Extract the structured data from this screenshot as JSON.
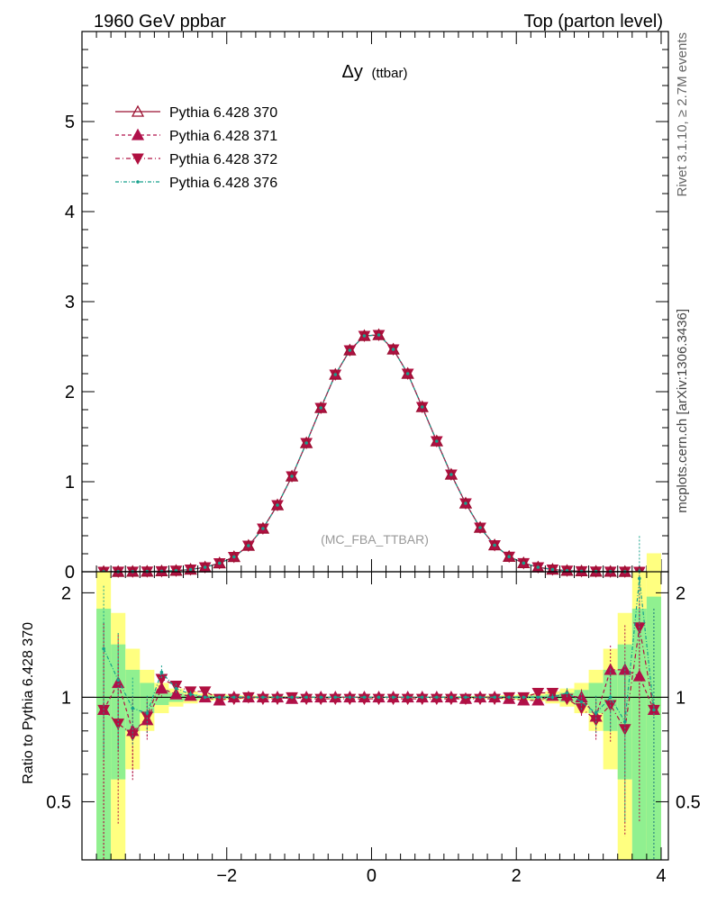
{
  "header": {
    "left": "1960 GeV ppbar",
    "right": "Top (parton level)"
  },
  "side_labels": {
    "rivet": "Rivet 3.1.10, ≥ 2.7M events",
    "mcplots": "mcplots.cern.ch [arXiv:1306.3436]"
  },
  "chart_data": [
    {
      "type": "line",
      "title": "Δy",
      "title_suffix": "(ttbar)",
      "watermark": "(MC_FBA_TTBAR)",
      "xlim": [
        -4.0,
        4.1
      ],
      "ylim": [
        0,
        6
      ],
      "yticks": [
        0,
        1,
        2,
        3,
        4,
        5
      ],
      "ytick_labels": [
        "0",
        "1",
        "2",
        "3",
        "4",
        "5"
      ],
      "legend": "top-left",
      "x": [
        -3.7,
        -3.5,
        -3.3,
        -3.1,
        -2.9,
        -2.7,
        -2.5,
        -2.3,
        -2.1,
        -1.9,
        -1.7,
        -1.5,
        -1.3,
        -1.1,
        -0.9,
        -0.7,
        -0.5,
        -0.3,
        -0.1,
        0.1,
        0.3,
        0.5,
        0.7,
        0.9,
        1.1,
        1.3,
        1.5,
        1.7,
        1.9,
        2.1,
        2.3,
        2.5,
        2.7,
        2.9,
        3.1,
        3.3,
        3.5,
        3.7,
        3.9
      ],
      "series": [
        {
          "name": "Pythia 6.428 370",
          "color": "#9b1030",
          "dash": "",
          "marker": "triangle-up-open",
          "values": [
            0.0004,
            0.0008,
            0.0016,
            0.003,
            0.006,
            0.012,
            0.025,
            0.05,
            0.095,
            0.165,
            0.29,
            0.48,
            0.74,
            1.06,
            1.43,
            1.82,
            2.19,
            2.46,
            2.62,
            2.63,
            2.47,
            2.2,
            1.83,
            1.45,
            1.08,
            0.76,
            0.49,
            0.295,
            0.168,
            0.096,
            0.05,
            0.025,
            0.012,
            0.006,
            0.003,
            0.0016,
            0.0008,
            0.0004,
            0.0002
          ]
        },
        {
          "name": "Pythia 6.428 371",
          "color": "#b0104a",
          "dash": "4,3",
          "marker": "triangle-up",
          "values": [
            0.0004,
            0.0008,
            0.0016,
            0.003,
            0.006,
            0.012,
            0.025,
            0.05,
            0.095,
            0.165,
            0.29,
            0.48,
            0.74,
            1.06,
            1.43,
            1.82,
            2.19,
            2.46,
            2.62,
            2.63,
            2.47,
            2.2,
            1.83,
            1.45,
            1.08,
            0.76,
            0.49,
            0.295,
            0.168,
            0.096,
            0.05,
            0.025,
            0.012,
            0.006,
            0.003,
            0.0016,
            0.0008,
            0.0004,
            0.0002
          ]
        },
        {
          "name": "Pythia 6.428 372",
          "color": "#b01040",
          "dash": "5,3,1,3",
          "marker": "triangle-down",
          "values": [
            0.0004,
            0.0008,
            0.0016,
            0.003,
            0.006,
            0.012,
            0.025,
            0.05,
            0.095,
            0.165,
            0.29,
            0.48,
            0.74,
            1.06,
            1.43,
            1.82,
            2.19,
            2.46,
            2.62,
            2.63,
            2.47,
            2.2,
            1.83,
            1.45,
            1.08,
            0.76,
            0.49,
            0.295,
            0.168,
            0.096,
            0.05,
            0.025,
            0.012,
            0.006,
            0.003,
            0.0016,
            0.0008,
            0.0004,
            0.0002
          ]
        },
        {
          "name": "Pythia 6.428 376",
          "color": "#16a08c",
          "dash": "4,2,1,2",
          "marker": "dot",
          "values": [
            0.0004,
            0.0008,
            0.0016,
            0.003,
            0.006,
            0.012,
            0.025,
            0.05,
            0.095,
            0.165,
            0.29,
            0.48,
            0.74,
            1.06,
            1.43,
            1.82,
            2.19,
            2.46,
            2.62,
            2.63,
            2.47,
            2.2,
            1.83,
            1.45,
            1.08,
            0.76,
            0.49,
            0.295,
            0.168,
            0.096,
            0.05,
            0.025,
            0.012,
            0.006,
            0.003,
            0.0016,
            0.0008,
            0.0004,
            0.0002
          ]
        }
      ]
    },
    {
      "type": "line",
      "ylabel": "Ratio to Pythia 6.428 370",
      "xlim": [
        -4.0,
        4.1
      ],
      "ylim": [
        0.34,
        2.3
      ],
      "xticks": [
        -2,
        0,
        2,
        4
      ],
      "xtick_labels": [
        "−2",
        "0",
        "2",
        "4"
      ],
      "yticks": [
        0.5,
        1,
        2
      ],
      "ytick_labels": [
        "0.5",
        "1",
        "2"
      ],
      "reference_line": 1,
      "x": [
        -3.7,
        -3.5,
        -3.3,
        -3.1,
        -2.9,
        -2.7,
        -2.5,
        -2.3,
        -2.1,
        -1.9,
        -1.7,
        -1.5,
        -1.3,
        -1.1,
        -0.9,
        -0.7,
        -0.5,
        -0.3,
        -0.1,
        0.1,
        0.3,
        0.5,
        0.7,
        0.9,
        1.1,
        1.3,
        1.5,
        1.7,
        1.9,
        2.1,
        2.3,
        2.5,
        2.7,
        2.9,
        3.1,
        3.3,
        3.5,
        3.7,
        3.9
      ],
      "bands": {
        "outer_color": "#ffff80",
        "inner_color": "#90f090",
        "outer_halfwidth": [
          1.3,
          0.75,
          0.38,
          0.2,
          0.1,
          0.06,
          0.04,
          0.025,
          0.02,
          0.015,
          0.012,
          0.01,
          0.008,
          0.007,
          0.006,
          0.005,
          0.005,
          0.005,
          0.005,
          0.005,
          0.005,
          0.005,
          0.005,
          0.006,
          0.007,
          0.008,
          0.01,
          0.012,
          0.015,
          0.02,
          0.025,
          0.04,
          0.06,
          0.1,
          0.2,
          0.38,
          0.75,
          1.3,
          1.6
        ],
        "inner_halfwidth": [
          0.8,
          0.42,
          0.2,
          0.1,
          0.05,
          0.03,
          0.02,
          0.012,
          0.01,
          0.008,
          0.006,
          0.005,
          0.004,
          0.0035,
          0.003,
          0.0025,
          0.0025,
          0.0025,
          0.0025,
          0.0025,
          0.0025,
          0.0025,
          0.0025,
          0.003,
          0.0035,
          0.004,
          0.005,
          0.006,
          0.008,
          0.01,
          0.012,
          0.02,
          0.03,
          0.05,
          0.1,
          0.2,
          0.42,
          0.8,
          0.95
        ]
      },
      "series": [
        {
          "name": "Pythia 6.428 371",
          "values": [
            0.92,
            1.1,
            0.8,
            0.86,
            1.06,
            1.02,
            1.01,
            1.0,
            0.98,
            1.0,
            1.0,
            1.0,
            1.0,
            0.99,
            1.0,
            1.0,
            1.0,
            1.0,
            1.0,
            1.0,
            1.0,
            1.0,
            1.0,
            1.0,
            1.0,
            0.99,
            1.0,
            1.0,
            0.99,
            0.98,
            0.98,
            1.01,
            1.01,
            1.0,
            0.88,
            1.2,
            1.2,
            1.15,
            0.92
          ]
        },
        {
          "name": "Pythia 6.428 372",
          "values": [
            0.92,
            0.84,
            0.78,
            0.88,
            1.13,
            1.08,
            1.04,
            1.04,
            0.99,
            0.99,
            1.0,
            0.99,
            0.99,
            1.0,
            0.99,
            0.99,
            0.99,
            0.99,
            0.99,
            0.99,
            0.99,
            0.99,
            0.99,
            0.99,
            0.99,
            0.99,
            0.99,
            0.99,
            1.0,
            1.0,
            1.03,
            1.03,
            0.99,
            0.93,
            0.86,
            0.95,
            0.81,
            1.59,
            0.92
          ]
        },
        {
          "name": "Pythia 6.428 376",
          "values": [
            1.38,
            1.12,
            0.93,
            0.9,
            1.18,
            1.06,
            1.02,
            1.0,
            1.0,
            1.0,
            1.0,
            1.0,
            1.0,
            1.0,
            1.0,
            1.0,
            1.0,
            1.0,
            1.0,
            1.0,
            1.0,
            1.0,
            1.0,
            1.0,
            1.0,
            1.0,
            1.0,
            1.0,
            1.0,
            1.0,
            1.0,
            1.0,
            1.03,
            0.97,
            0.9,
            1.0,
            0.85,
            2.2,
            0.92
          ]
        }
      ]
    }
  ]
}
